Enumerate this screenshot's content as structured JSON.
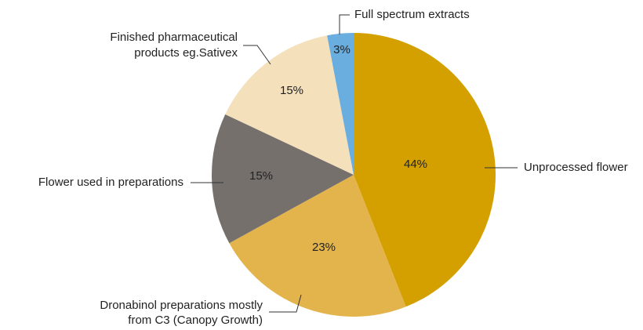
{
  "chart_data": {
    "type": "pie",
    "categories": [
      "Unprocessed flower",
      "Dronabinol preparations mostly\nfrom C3 (Canopy Growth)",
      "Flower used in preparations",
      "Finished pharmaceutical\nproducts eg.Sativex",
      "Full spectrum extracts"
    ],
    "values": [
      44,
      23,
      15,
      15,
      3
    ],
    "value_labels": [
      "44%",
      "23%",
      "15%",
      "15%",
      "3%"
    ],
    "colors": [
      "#d4a000",
      "#e3b44c",
      "#76706d",
      "#f5e0bc",
      "#6aaee0"
    ]
  }
}
